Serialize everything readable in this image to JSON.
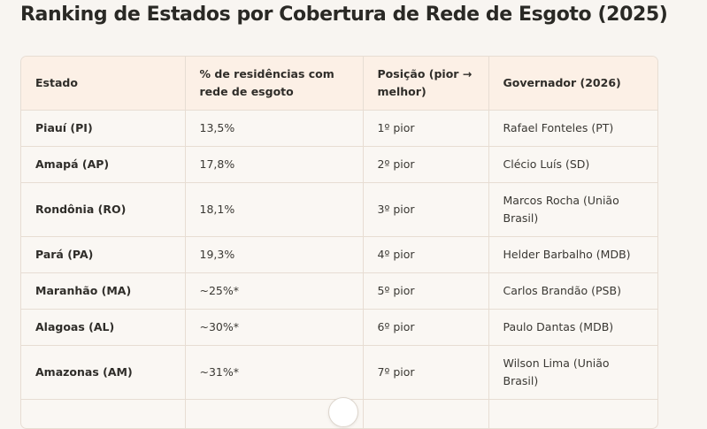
{
  "title": "Ranking de Estados por Cobertura de Rede de Esgoto (2025)",
  "table": {
    "headers": [
      "Estado",
      "% de residências com rede de esgoto",
      "Posição (pior → melhor)",
      "Governador (2026)"
    ],
    "rows": [
      {
        "estado": "Piauí (PI)",
        "pct": "13,5%",
        "posicao": "1º pior",
        "governador": "Rafael Fonteles (PT)"
      },
      {
        "estado": "Amapá (AP)",
        "pct": "17,8%",
        "posicao": "2º pior",
        "governador": "Clécio Luís (SD)"
      },
      {
        "estado": "Rondônia (RO)",
        "pct": "18,1%",
        "posicao": "3º pior",
        "governador": "Marcos Rocha (União Brasil)"
      },
      {
        "estado": "Pará (PA)",
        "pct": "19,3%",
        "posicao": "4º pior",
        "governador": "Helder Barbalho (MDB)"
      },
      {
        "estado": "Maranhão (MA)",
        "pct": "~25%*",
        "posicao": "5º pior",
        "governador": "Carlos Brandão (PSB)"
      },
      {
        "estado": "Alagoas (AL)",
        "pct": "~30%*",
        "posicao": "6º pior",
        "governador": "Paulo Dantas (MDB)"
      },
      {
        "estado": "Amazonas (AM)",
        "pct": "~31%*",
        "posicao": "7º pior",
        "governador": "Wilson Lima (União Brasil)"
      }
    ]
  }
}
